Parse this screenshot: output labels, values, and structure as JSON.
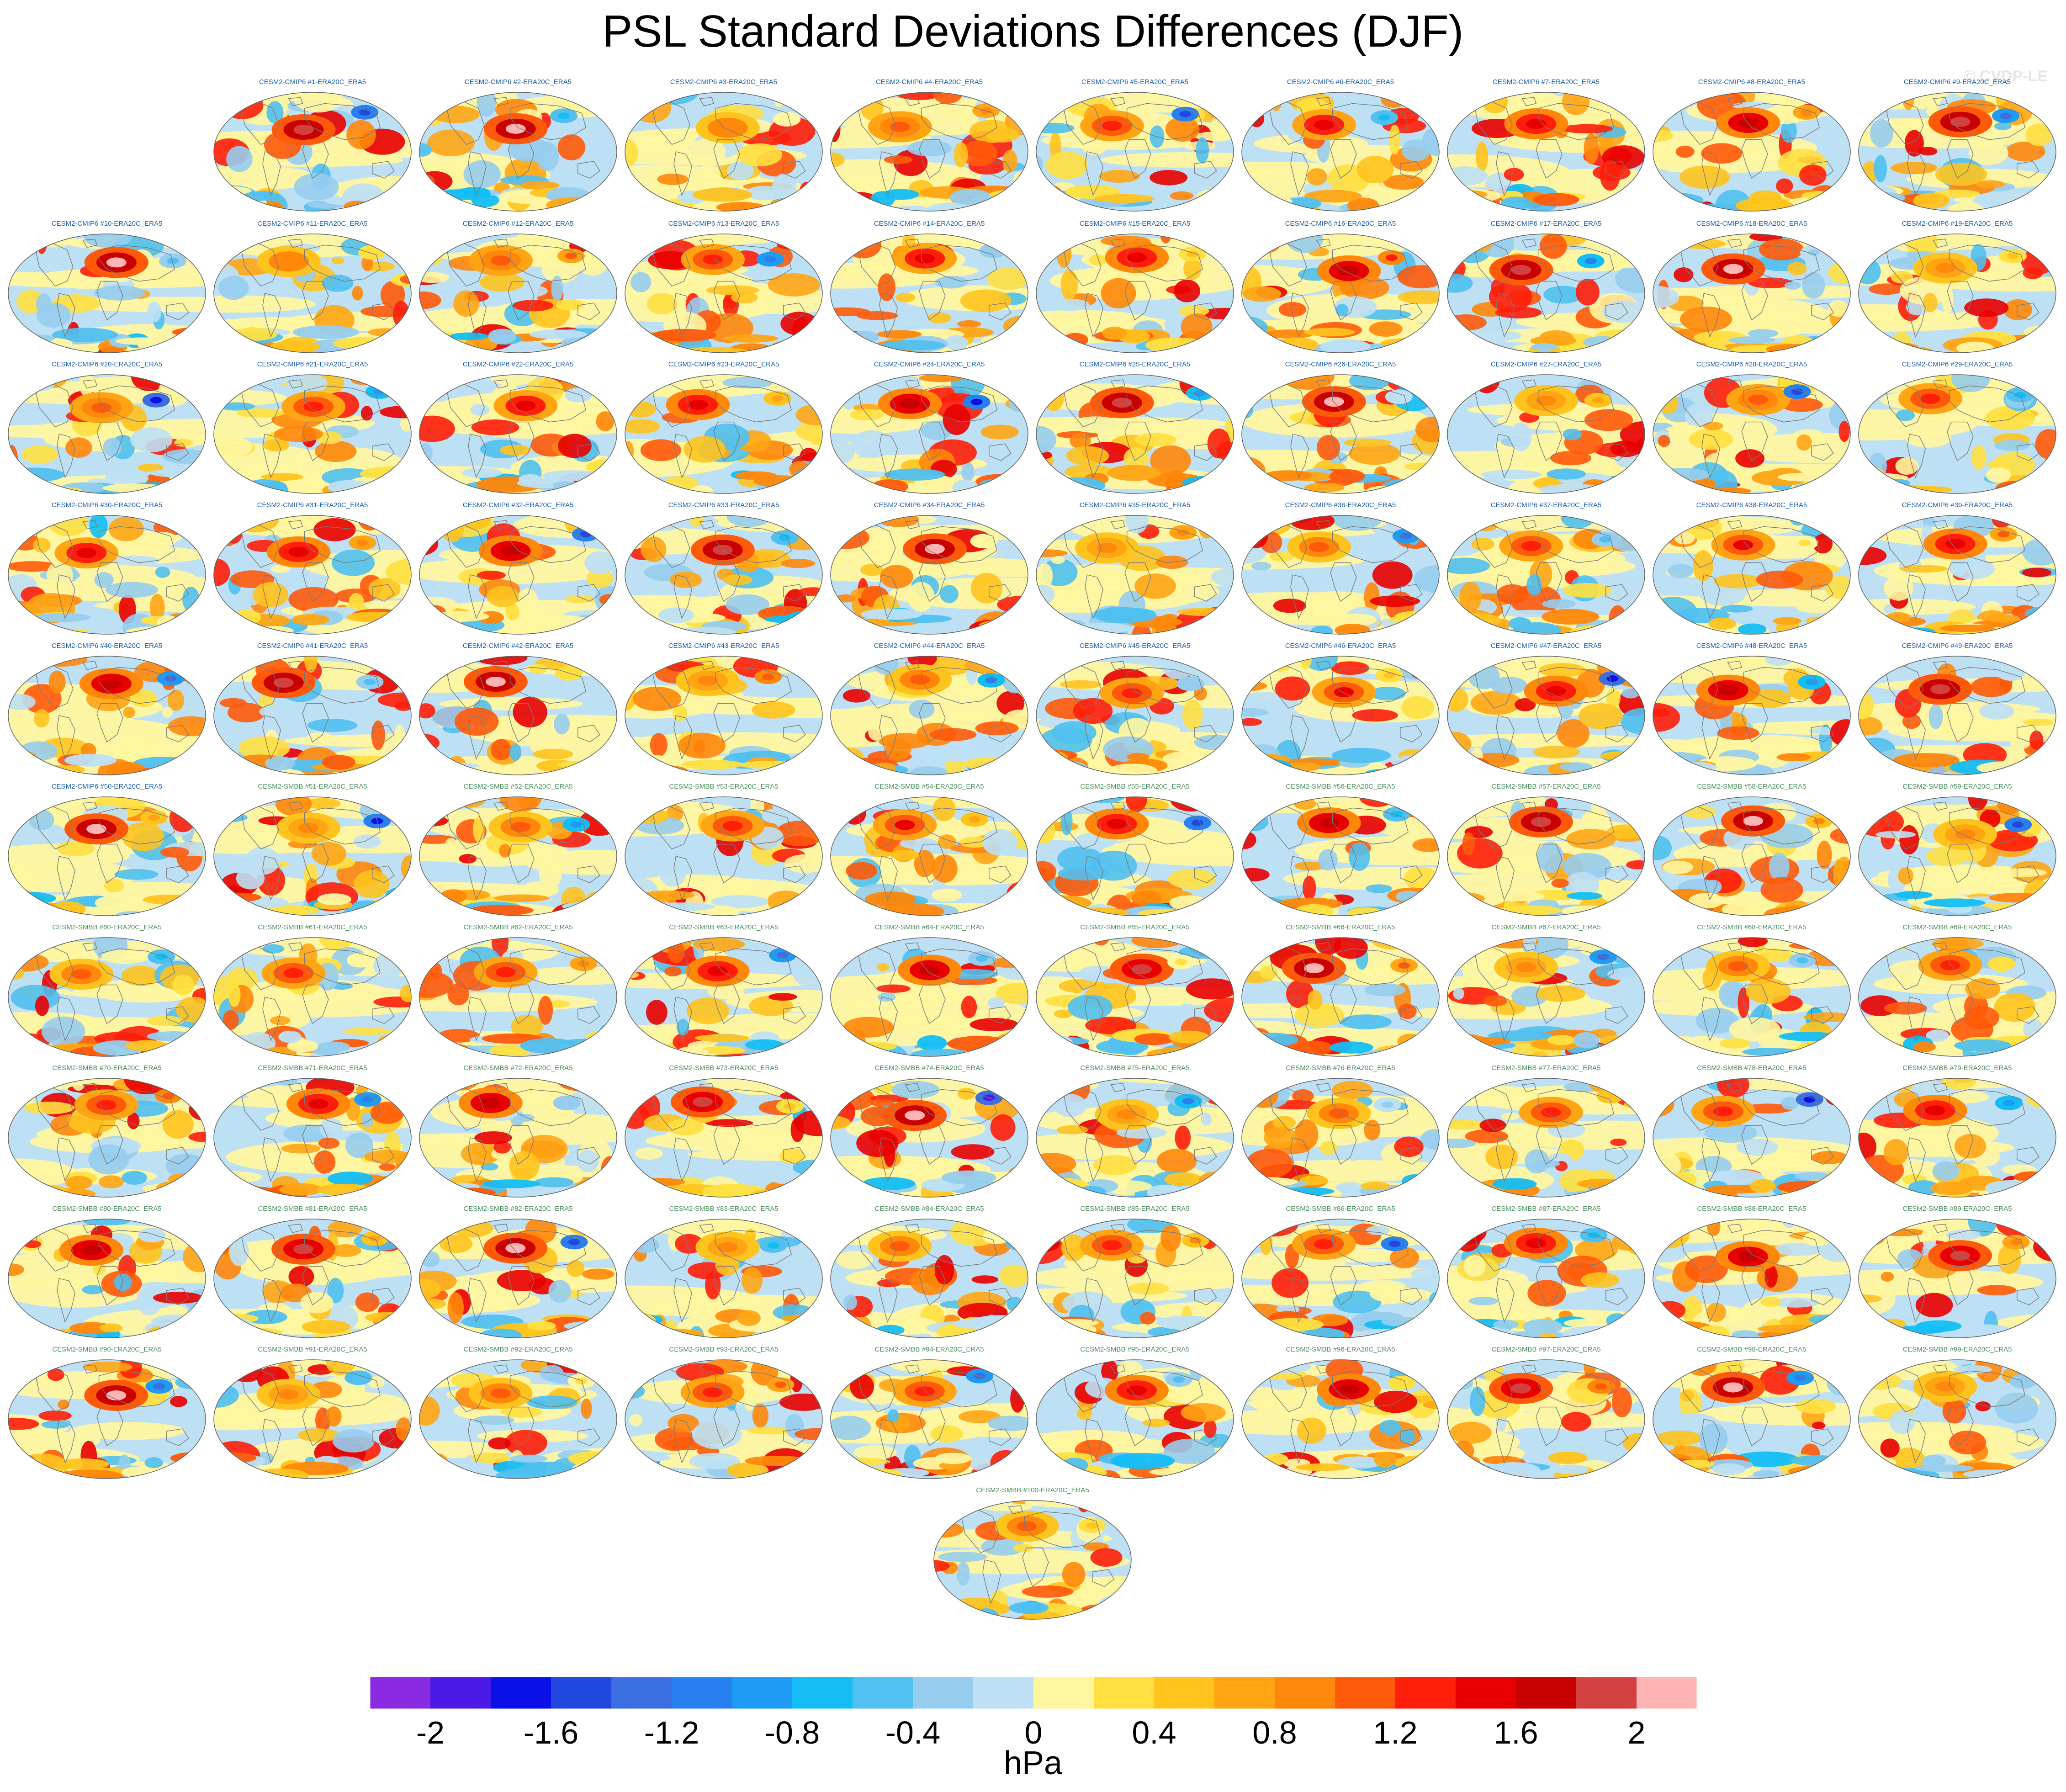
{
  "title": "PSL Standard Deviations Differences (DJF)",
  "watermark": "© CVDP-LE",
  "chart_data": {
    "type": "heatmap",
    "description_level": "panel-grid",
    "title": "PSL Standard Deviations Differences (DJF)",
    "units": "hPa",
    "panels": [
      "CESM2-CMIP6 #1-ERA20C_ERA5",
      "CESM2-CMIP6 #2-ERA20C_ERA5",
      "CESM2-CMIP6 #3-ERA20C_ERA5",
      "CESM2-CMIP6 #4-ERA20C_ERA5",
      "CESM2-CMIP6 #5-ERA20C_ERA5",
      "CESM2-CMIP6 #6-ERA20C_ERA5",
      "CESM2-CMIP6 #7-ERA20C_ERA5",
      "CESM2-CMIP6 #8-ERA20C_ERA5",
      "CESM2-CMIP6 #9-ERA20C_ERA5",
      "CESM2-CMIP6 #10-ERA20C_ERA5",
      "CESM2-CMIP6 #11-ERA20C_ERA5",
      "CESM2-CMIP6 #12-ERA20C_ERA5",
      "CESM2-CMIP6 #13-ERA20C_ERA5",
      "CESM2-CMIP6 #14-ERA20C_ERA5",
      "CESM2-CMIP6 #15-ERA20C_ERA5",
      "CESM2-CMIP6 #16-ERA20C_ERA5",
      "CESM2-CMIP6 #17-ERA20C_ERA5",
      "CESM2-CMIP6 #18-ERA20C_ERA5",
      "CESM2-CMIP6 #19-ERA20C_ERA5",
      "CESM2-CMIP6 #20-ERA20C_ERA5",
      "CESM2-CMIP6 #21-ERA20C_ERA5",
      "CESM2-CMIP6 #22-ERA20C_ERA5",
      "CESM2-CMIP6 #23-ERA20C_ERA5",
      "CESM2-CMIP6 #24-ERA20C_ERA5",
      "CESM2-CMIP6 #25-ERA20C_ERA5",
      "CESM2-CMIP6 #26-ERA20C_ERA5",
      "CESM2-CMIP6 #27-ERA20C_ERA5",
      "CESM2-CMIP6 #28-ERA20C_ERA5",
      "CESM2-CMIP6 #29-ERA20C_ERA5",
      "CESM2-CMIP6 #30-ERA20C_ERA5",
      "CESM2-CMIP6 #31-ERA20C_ERA5",
      "CESM2-CMIP6 #32-ERA20C_ERA5",
      "CESM2-CMIP6 #33-ERA20C_ERA5",
      "CESM2-CMIP6 #34-ERA20C_ERA5",
      "CESM2-CMIP6 #35-ERA20C_ERA5",
      "CESM2-CMIP6 #36-ERA20C_ERA5",
      "CESM2-CMIP6 #37-ERA20C_ERA5",
      "CESM2-CMIP6 #38-ERA20C_ERA5",
      "CESM2-CMIP6 #39-ERA20C_ERA5",
      "CESM2-CMIP6 #40-ERA20C_ERA5",
      "CESM2-CMIP6 #41-ERA20C_ERA5",
      "CESM2-CMIP6 #42-ERA20C_ERA5",
      "CESM2-CMIP6 #43-ERA20C_ERA5",
      "CESM2-CMIP6 #44-ERA20C_ERA5",
      "CESM2-CMIP6 #45-ERA20C_ERA5",
      "CESM2-CMIP6 #46-ERA20C_ERA5",
      "CESM2-CMIP6 #47-ERA20C_ERA5",
      "CESM2-CMIP6 #48-ERA20C_ERA5",
      "CESM2-CMIP6 #49-ERA20C_ERA5",
      "CESM2-CMIP6 #50-ERA20C_ERA5",
      "CESM2-SMBB #51-ERA20C_ERA5",
      "CESM2-SMBB #52-ERA20C_ERA5",
      "CESM2-SMBB #53-ERA20C_ERA5",
      "CESM2-SMBB #54-ERA20C_ERA5",
      "CESM2-SMBB #55-ERA20C_ERA5",
      "CESM2-SMBB #56-ERA20C_ERA5",
      "CESM2-SMBB #57-ERA20C_ERA5",
      "CESM2-SMBB #58-ERA20C_ERA5",
      "CESM2-SMBB #59-ERA20C_ERA5",
      "CESM2-SMBB #60-ERA20C_ERA5",
      "CESM2-SMBB #61-ERA20C_ERA5",
      "CESM2-SMBB #62-ERA20C_ERA5",
      "CESM2-SMBB #63-ERA20C_ERA5",
      "CESM2-SMBB #64-ERA20C_ERA5",
      "CESM2-SMBB #65-ERA20C_ERA5",
      "CESM2-SMBB #66-ERA20C_ERA5",
      "CESM2-SMBB #67-ERA20C_ERA5",
      "CESM2-SMBB #68-ERA20C_ERA5",
      "CESM2-SMBB #69-ERA20C_ERA5",
      "CESM2-SMBB #70-ERA20C_ERA5",
      "CESM2-SMBB #71-ERA20C_ERA5",
      "CESM2-SMBB #72-ERA20C_ERA5",
      "CESM2-SMBB #73-ERA20C_ERA5",
      "CESM2-SMBB #74-ERA20C_ERA5",
      "CESM2-SMBB #75-ERA20C_ERA5",
      "CESM2-SMBB #76-ERA20C_ERA5",
      "CESM2-SMBB #77-ERA20C_ERA5",
      "CESM2-SMBB #78-ERA20C_ERA5",
      "CESM2-SMBB #79-ERA20C_ERA5",
      "CESM2-SMBB #80-ERA20C_ERA5",
      "CESM2-SMBB #81-ERA20C_ERA5",
      "CESM2-SMBB #82-ERA20C_ERA5",
      "CESM2-SMBB #83-ERA20C_ERA5",
      "CESM2-SMBB #84-ERA20C_ERA5",
      "CESM2-SMBB #85-ERA20C_ERA5",
      "CESM2-SMBB #86-ERA20C_ERA5",
      "CESM2-SMBB #87-ERA20C_ERA5",
      "CESM2-SMBB #88-ERA20C_ERA5",
      "CESM2-SMBB #89-ERA20C_ERA5",
      "CESM2-SMBB #90-ERA20C_ERA5",
      "CESM2-SMBB #91-ERA20C_ERA5",
      "CESM2-SMBB #92-ERA20C_ERA5",
      "CESM2-SMBB #93-ERA20C_ERA5",
      "CESM2-SMBB #94-ERA20C_ERA5",
      "CESM2-SMBB #95-ERA20C_ERA5",
      "CESM2-SMBB #96-ERA20C_ERA5",
      "CESM2-SMBB #97-ERA20C_ERA5",
      "CESM2-SMBB #98-ERA20C_ERA5",
      "CESM2-SMBB #99-ERA20C_ERA5",
      "CESM2-SMBB #100-ERA20C_ERA5"
    ],
    "colorbar": {
      "min": -2.2,
      "max": 2.2,
      "step": 0.2,
      "tick_labels": [
        "-2",
        "-1.6",
        "-1.2",
        "-0.8",
        "-0.4",
        "0",
        "0.4",
        "0.8",
        "1.2",
        "1.6",
        "2"
      ],
      "label": "hPa",
      "colors": [
        "#8a2be2",
        "#4b1ae6",
        "#0a10e6",
        "#2348e0",
        "#3b6ee0",
        "#2880f0",
        "#1e9bf5",
        "#14bef5",
        "#50c0f0",
        "#96cdee",
        "#bde0f5",
        "#fff6a0",
        "#ffe040",
        "#ffc31e",
        "#ffa514",
        "#ff870a",
        "#ff5a0a",
        "#ff1e0a",
        "#e80000",
        "#c80000",
        "#d24040",
        "#ffb4b4"
      ]
    },
    "palette_land_outline": "#7a7a7a",
    "title_color_cmip6": "#1a5fb0",
    "title_color_smbb": "#4a8f5a"
  }
}
